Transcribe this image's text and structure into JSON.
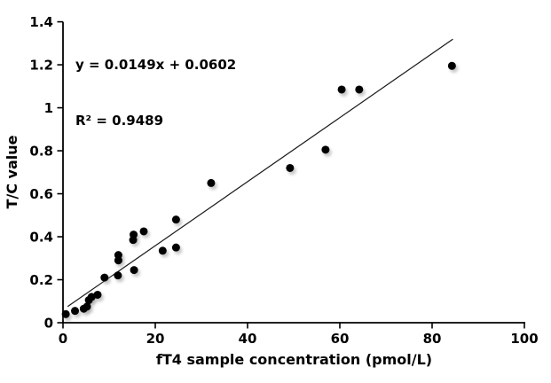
{
  "chart_data": {
    "type": "scatter",
    "title": "",
    "xlabel": "fT4 sample concentration (pmol/L)",
    "ylabel": "T/C value",
    "xlim": [
      0,
      100
    ],
    "ylim": [
      0,
      1.4
    ],
    "grid": false,
    "legend": null,
    "background": "#ffffff",
    "point_color": "#000000",
    "line_color": "#1a1a1a",
    "annotation": {
      "equation": "y = 0.0149x + 0.0602",
      "r_squared": "R² = 0.9489"
    },
    "trendline": {
      "slope": 0.0149,
      "intercept": 0.0602,
      "x_start": 1.0,
      "x_end": 84.5
    },
    "x_tick_values": [
      0,
      20,
      40,
      60,
      80,
      100
    ],
    "x_tick_labels": [
      "0",
      "20",
      "40",
      "60",
      "80",
      "100"
    ],
    "y_tick_values": [
      0,
      0.2,
      0.4,
      0.6,
      0.8,
      1,
      1.2,
      1.4
    ],
    "y_tick_labels": [
      "0",
      "0.2",
      "0.4",
      "0.6",
      "0.8",
      "1",
      "1.2",
      "1.4"
    ],
    "points": [
      [
        0.6,
        0.04
      ],
      [
        2.6,
        0.055
      ],
      [
        4.5,
        0.065
      ],
      [
        5.2,
        0.075
      ],
      [
        5.6,
        0.105
      ],
      [
        6.2,
        0.12
      ],
      [
        7.5,
        0.13
      ],
      [
        9.0,
        0.21
      ],
      [
        11.9,
        0.22
      ],
      [
        12.0,
        0.29
      ],
      [
        12.0,
        0.315
      ],
      [
        15.4,
        0.245
      ],
      [
        15.2,
        0.385
      ],
      [
        15.3,
        0.41
      ],
      [
        17.5,
        0.425
      ],
      [
        21.6,
        0.335
      ],
      [
        24.5,
        0.35
      ],
      [
        24.5,
        0.48
      ],
      [
        32.1,
        0.65
      ],
      [
        49.2,
        0.72
      ],
      [
        56.9,
        0.805
      ],
      [
        60.4,
        1.085
      ],
      [
        64.2,
        1.085
      ],
      [
        84.3,
        1.195
      ]
    ]
  }
}
